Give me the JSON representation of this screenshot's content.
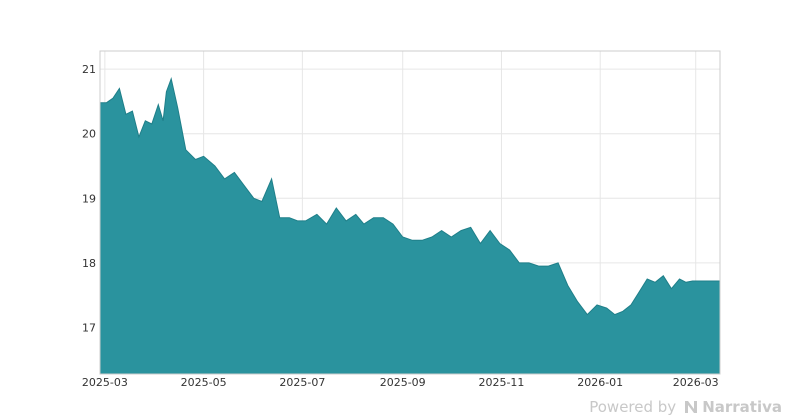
{
  "chart_data": {
    "type": "area",
    "title": "",
    "xlabel": "",
    "ylabel": "",
    "x_tick_labels": [
      "2025-03",
      "2025-05",
      "2025-07",
      "2025-09",
      "2025-11",
      "2026-01",
      "2026-03"
    ],
    "y_tick_labels": [
      "17",
      "18",
      "19",
      "20",
      "21"
    ],
    "ylim": [
      16.28,
      21.28
    ],
    "xlim": [
      "2025-02-26",
      "2026-03-16"
    ],
    "grid": true,
    "series": [
      {
        "color": "#2a939e",
        "x": [
          "2025-02-26",
          "2025-03-02",
          "2025-03-06",
          "2025-03-10",
          "2025-03-14",
          "2025-03-18",
          "2025-03-22",
          "2025-03-26",
          "2025-03-30",
          "2025-04-03",
          "2025-04-06",
          "2025-04-08",
          "2025-04-11",
          "2025-04-15",
          "2025-04-20",
          "2025-04-26",
          "2025-05-01",
          "2025-05-08",
          "2025-05-14",
          "2025-05-20",
          "2025-05-26",
          "2025-06-01",
          "2025-06-06",
          "2025-06-12",
          "2025-06-17",
          "2025-06-23",
          "2025-06-28",
          "2025-07-03",
          "2025-07-10",
          "2025-07-16",
          "2025-07-22",
          "2025-07-28",
          "2025-08-03",
          "2025-08-08",
          "2025-08-14",
          "2025-08-20",
          "2025-08-26",
          "2025-09-01",
          "2025-09-07",
          "2025-09-13",
          "2025-09-19",
          "2025-09-25",
          "2025-10-01",
          "2025-10-07",
          "2025-10-13",
          "2025-10-19",
          "2025-10-25",
          "2025-10-31",
          "2025-11-06",
          "2025-11-12",
          "2025-11-18",
          "2025-11-24",
          "2025-11-30",
          "2025-12-06",
          "2025-12-12",
          "2025-12-18",
          "2025-12-24",
          "2025-12-30",
          "2026-01-05",
          "2026-01-10",
          "2026-01-15",
          "2026-01-20",
          "2026-01-25",
          "2026-01-30",
          "2026-02-04",
          "2026-02-09",
          "2026-02-14",
          "2026-02-19",
          "2026-02-23",
          "2026-02-27",
          "2026-03-03",
          "2026-03-07",
          "2026-03-10",
          "2026-03-13",
          "2026-03-16"
        ],
        "values": [
          20.48,
          20.48,
          20.55,
          20.7,
          20.3,
          20.35,
          19.95,
          20.2,
          20.15,
          20.45,
          20.2,
          20.65,
          20.85,
          20.4,
          19.75,
          19.6,
          19.65,
          19.5,
          19.3,
          19.4,
          19.2,
          19.0,
          18.95,
          19.3,
          18.7,
          18.7,
          18.65,
          18.65,
          18.75,
          18.6,
          18.85,
          18.65,
          18.75,
          18.6,
          18.7,
          18.7,
          18.6,
          18.4,
          18.35,
          18.35,
          18.4,
          18.5,
          18.4,
          18.5,
          18.55,
          18.3,
          18.5,
          18.3,
          18.2,
          18.0,
          18.0,
          17.95,
          17.95,
          18.0,
          17.65,
          17.4,
          17.2,
          17.35,
          17.3,
          17.2,
          17.25,
          17.35,
          17.55,
          17.75,
          17.7,
          17.8,
          17.6,
          17.75,
          17.7,
          17.72,
          17.72,
          17.72,
          17.72,
          17.72,
          17.72
        ]
      }
    ]
  },
  "footer": {
    "powered_label": "Powered by",
    "brand_label": "Narrativa"
  }
}
